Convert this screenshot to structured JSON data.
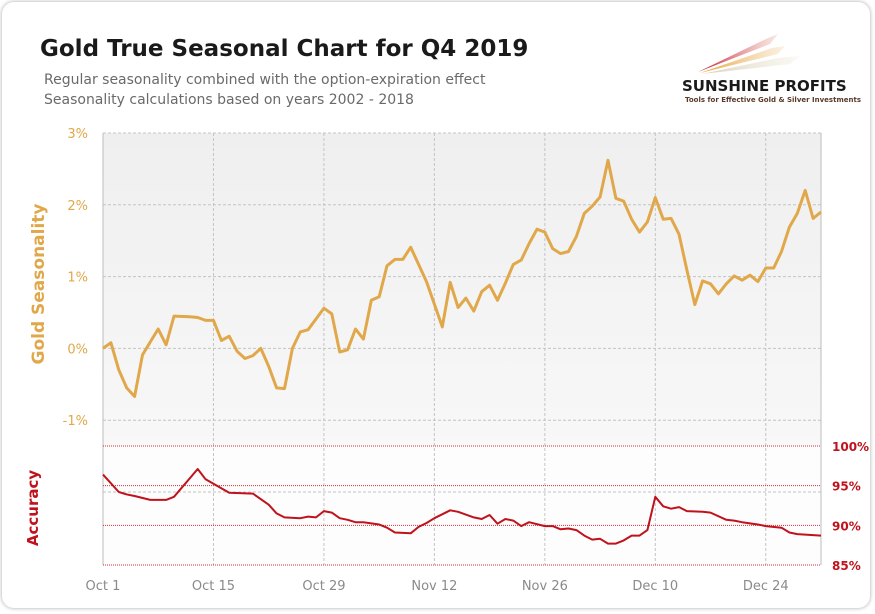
{
  "header": {
    "title": "Gold True Seasonal Chart for Q4 2019",
    "subtitle_1": "Regular seasonality combined with the option-expiration effect",
    "subtitle_2": "Seasonality calculations based on years 2002 - 2018"
  },
  "logo": {
    "name": "SUNSHINE PROFITS",
    "tagline": "Tools for Effective Gold & Silver Investments"
  },
  "chart_data": [
    {
      "type": "line",
      "title": "Gold True Seasonal Chart for Q4 2019",
      "ylabel": "Gold Seasonality",
      "ylim": [
        -2,
        3
      ],
      "y_ticks": [
        "3%",
        "2%",
        "1%",
        "0%",
        "-1%"
      ],
      "x_range": [
        "2019-10-01",
        "2019-12-31"
      ],
      "x_ticks": [
        "Oct 1",
        "Oct 15",
        "Oct 29",
        "Nov 12",
        "Nov 26",
        "Dec 10",
        "Dec 24"
      ],
      "grid": true,
      "color": "#e0a84a",
      "x": [
        "2019-10-01",
        "2019-10-02",
        "2019-10-03",
        "2019-10-04",
        "2019-10-05",
        "2019-10-06",
        "2019-10-07",
        "2019-10-08",
        "2019-10-09",
        "2019-10-10",
        "2019-10-12",
        "2019-10-13",
        "2019-10-14",
        "2019-10-15",
        "2019-10-16",
        "2019-10-17",
        "2019-10-18",
        "2019-10-19",
        "2019-10-20",
        "2019-10-21",
        "2019-10-22",
        "2019-10-23",
        "2019-10-24",
        "2019-10-25",
        "2019-10-26",
        "2019-10-27",
        "2019-10-28",
        "2019-10-29",
        "2019-10-30",
        "2019-10-31",
        "2019-11-01",
        "2019-11-02",
        "2019-11-03",
        "2019-11-04",
        "2019-11-05",
        "2019-11-06",
        "2019-11-07",
        "2019-11-08",
        "2019-11-09",
        "2019-11-11",
        "2019-11-13",
        "2019-11-14",
        "2019-11-15",
        "2019-11-16",
        "2019-11-17",
        "2019-11-18",
        "2019-11-19",
        "2019-11-20",
        "2019-11-21",
        "2019-11-22",
        "2019-11-23",
        "2019-11-24",
        "2019-11-25",
        "2019-11-26",
        "2019-11-27",
        "2019-11-28",
        "2019-11-29",
        "2019-11-30",
        "2019-12-01",
        "2019-12-02",
        "2019-12-03",
        "2019-12-04",
        "2019-12-05",
        "2019-12-06",
        "2019-12-07",
        "2019-12-08",
        "2019-12-09",
        "2019-12-10",
        "2019-12-11",
        "2019-12-12",
        "2019-12-13",
        "2019-12-14",
        "2019-12-15",
        "2019-12-16",
        "2019-12-17",
        "2019-12-18",
        "2019-12-19",
        "2019-12-20",
        "2019-12-21",
        "2019-12-22",
        "2019-12-23",
        "2019-12-24",
        "2019-12-25",
        "2019-12-26",
        "2019-12-27",
        "2019-12-28",
        "2019-12-29",
        "2019-12-30",
        "2019-12-31"
      ],
      "y": [
        0.0,
        0.08,
        -0.3,
        -0.55,
        -0.67,
        -0.09,
        0.09,
        0.27,
        0.05,
        0.45,
        0.44,
        0.43,
        0.39,
        0.39,
        0.11,
        0.17,
        -0.04,
        -0.14,
        -0.1,
        0.0,
        -0.25,
        -0.55,
        -0.56,
        0.0,
        0.23,
        0.26,
        0.41,
        0.56,
        0.48,
        -0.05,
        -0.02,
        0.27,
        0.13,
        0.67,
        0.72,
        1.15,
        1.24,
        1.24,
        1.41,
        0.93,
        0.3,
        0.92,
        0.57,
        0.7,
        0.52,
        0.79,
        0.88,
        0.67,
        0.91,
        1.17,
        1.23,
        1.46,
        1.66,
        1.62,
        1.39,
        1.32,
        1.35,
        1.56,
        1.88,
        1.98,
        2.11,
        2.62,
        2.09,
        2.05,
        1.8,
        1.62,
        1.76,
        2.1,
        1.8,
        1.81,
        1.59,
        1.09,
        0.61,
        0.94,
        0.9,
        0.76,
        0.9,
        1.01,
        0.95,
        1.02,
        0.93,
        1.12,
        1.12,
        1.35,
        1.69,
        1.88,
        2.2,
        1.81,
        1.9
      ]
    },
    {
      "type": "line",
      "ylabel": "Accuracy",
      "ylim": [
        85,
        100
      ],
      "y_ticks": [
        "100%",
        "95%",
        "90%",
        "85%"
      ],
      "x_range": [
        "2019-10-01",
        "2019-12-31"
      ],
      "grid": true,
      "color": "#c0121c",
      "x": [
        "2019-10-01",
        "2019-10-03",
        "2019-10-04",
        "2019-10-05",
        "2019-10-07",
        "2019-10-08",
        "2019-10-09",
        "2019-10-10",
        "2019-10-13",
        "2019-10-14",
        "2019-10-17",
        "2019-10-20",
        "2019-10-22",
        "2019-10-23",
        "2019-10-24",
        "2019-10-26",
        "2019-10-27",
        "2019-10-28",
        "2019-10-29",
        "2019-10-30",
        "2019-10-31",
        "2019-11-01",
        "2019-11-02",
        "2019-11-03",
        "2019-11-05",
        "2019-11-06",
        "2019-11-07",
        "2019-11-09",
        "2019-11-10",
        "2019-11-11",
        "2019-11-12",
        "2019-11-14",
        "2019-11-15",
        "2019-11-17",
        "2019-11-18",
        "2019-11-19",
        "2019-11-20",
        "2019-11-21",
        "2019-11-22",
        "2019-11-23",
        "2019-11-24",
        "2019-11-26",
        "2019-11-27",
        "2019-11-28",
        "2019-11-29",
        "2019-11-30",
        "2019-12-01",
        "2019-12-02",
        "2019-12-03",
        "2019-12-04",
        "2019-12-05",
        "2019-12-06",
        "2019-12-07",
        "2019-12-08",
        "2019-12-09",
        "2019-12-10",
        "2019-12-11",
        "2019-12-12",
        "2019-12-13",
        "2019-12-14",
        "2019-12-16",
        "2019-12-17",
        "2019-12-19",
        "2019-12-20",
        "2019-12-21",
        "2019-12-23",
        "2019-12-24",
        "2019-12-26",
        "2019-12-27",
        "2019-12-28",
        "2019-12-31"
      ],
      "y": [
        96.4,
        94.2,
        93.9,
        93.7,
        93.2,
        93.2,
        93.2,
        93.6,
        97.1,
        95.8,
        94.1,
        94.0,
        92.6,
        91.5,
        91.0,
        90.9,
        91.1,
        91.0,
        91.8,
        91.6,
        90.9,
        90.7,
        90.4,
        90.4,
        90.1,
        89.7,
        89.1,
        89.0,
        89.8,
        90.3,
        90.9,
        91.9,
        91.7,
        91.0,
        90.8,
        91.3,
        90.2,
        90.8,
        90.6,
        89.9,
        90.4,
        89.9,
        89.9,
        89.5,
        89.6,
        89.4,
        88.7,
        88.2,
        88.3,
        87.7,
        87.7,
        88.1,
        88.7,
        88.7,
        89.4,
        93.6,
        92.4,
        92.1,
        92.3,
        91.8,
        91.7,
        91.6,
        90.7,
        90.6,
        90.4,
        90.1,
        89.9,
        89.7,
        89.1,
        88.9,
        88.7
      ]
    }
  ]
}
